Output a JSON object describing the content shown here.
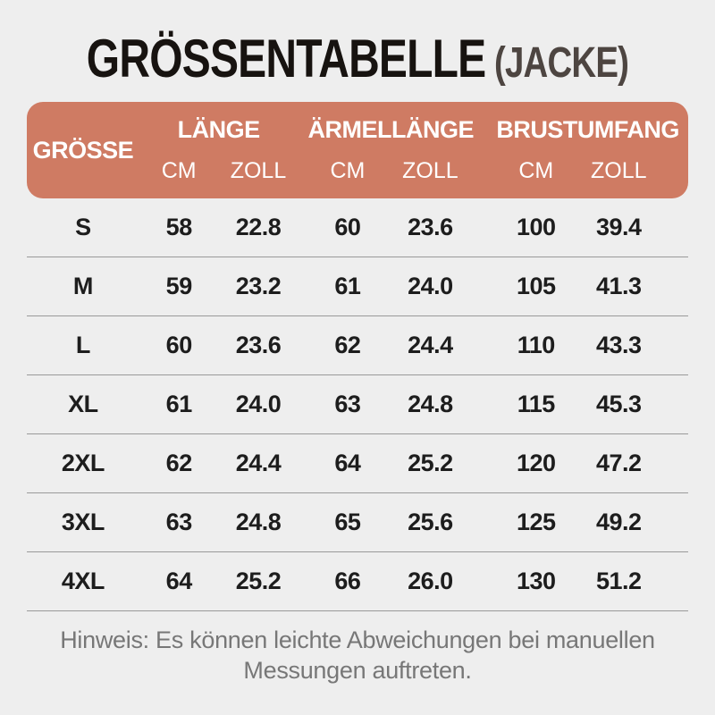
{
  "title": {
    "main": "GRÖSSENTABELLE",
    "suffix": "(JACKE)"
  },
  "table": {
    "size_header": "GRÖSSE",
    "groups": [
      {
        "label": "LÄNGE",
        "sub": [
          "CM",
          "ZOLL"
        ]
      },
      {
        "label": "ÄRMELLÄNGE",
        "sub": [
          "CM",
          "ZOLL"
        ]
      },
      {
        "label": "BRUSTUMFANG",
        "sub": [
          "CM",
          "ZOLL"
        ]
      }
    ],
    "rows": [
      {
        "size": "S",
        "values": [
          "58",
          "22.8",
          "60",
          "23.6",
          "100",
          "39.4"
        ]
      },
      {
        "size": "M",
        "values": [
          "59",
          "23.2",
          "61",
          "24.0",
          "105",
          "41.3"
        ]
      },
      {
        "size": "L",
        "values": [
          "60",
          "23.6",
          "62",
          "24.4",
          "110",
          "43.3"
        ]
      },
      {
        "size": "XL",
        "values": [
          "61",
          "24.0",
          "63",
          "24.8",
          "115",
          "45.3"
        ]
      },
      {
        "size": "2XL",
        "values": [
          "62",
          "24.4",
          "64",
          "25.2",
          "120",
          "47.2"
        ]
      },
      {
        "size": "3XL",
        "values": [
          "63",
          "24.8",
          "65",
          "25.6",
          "125",
          "49.2"
        ]
      },
      {
        "size": "4XL",
        "values": [
          "64",
          "25.2",
          "66",
          "26.0",
          "130",
          "51.2"
        ]
      }
    ]
  },
  "note": "Hinweis: Es können leichte Abweichungen bei manuellen Messungen auftreten.",
  "colors": {
    "page_bg": "#eeeeee",
    "header_bg": "#cf7b63",
    "header_text": "#ffffff",
    "title_main": "#171310",
    "title_suffix": "#4d4541",
    "row_text": "#1d1d1d",
    "divider": "#999999",
    "note_text": "#777777"
  },
  "chart_data": {
    "type": "table",
    "title": "GRÖSSENTABELLE (JACKE)",
    "columns": [
      "GRÖSSE",
      "LÄNGE CM",
      "LÄNGE ZOLL",
      "ÄRMELLÄNGE CM",
      "ÄRMELLÄNGE ZOLL",
      "BRUSTUMFANG CM",
      "BRUSTUMFANG ZOLL"
    ],
    "rows": [
      [
        "S",
        58,
        22.8,
        60,
        23.6,
        100,
        39.4
      ],
      [
        "M",
        59,
        23.2,
        61,
        24.0,
        105,
        41.3
      ],
      [
        "L",
        60,
        23.6,
        62,
        24.4,
        110,
        43.3
      ],
      [
        "XL",
        61,
        24.0,
        63,
        24.8,
        115,
        45.3
      ],
      [
        "2XL",
        62,
        24.4,
        64,
        25.2,
        120,
        47.2
      ],
      [
        "3XL",
        63,
        24.8,
        65,
        25.6,
        125,
        49.2
      ],
      [
        "4XL",
        64,
        25.2,
        66,
        26.0,
        130,
        51.2
      ]
    ],
    "footnote": "Hinweis: Es können leichte Abweichungen bei manuellen Messungen auftreten."
  }
}
